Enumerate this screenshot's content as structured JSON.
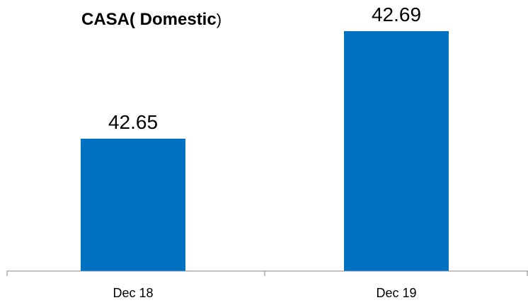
{
  "chart_data": {
    "type": "bar",
    "title": "CASA( Domestic)",
    "title_bold_part": "CASA( Domestic",
    "title_tail_part": ")",
    "categories": [
      "Dec 18",
      "Dec 19"
    ],
    "values": [
      42.65,
      42.69
    ],
    "data_labels": [
      "42.65",
      "42.69"
    ],
    "xlabel": "",
    "ylabel": "",
    "grid": false,
    "legend": "none",
    "bar_color": "#0070C0"
  }
}
